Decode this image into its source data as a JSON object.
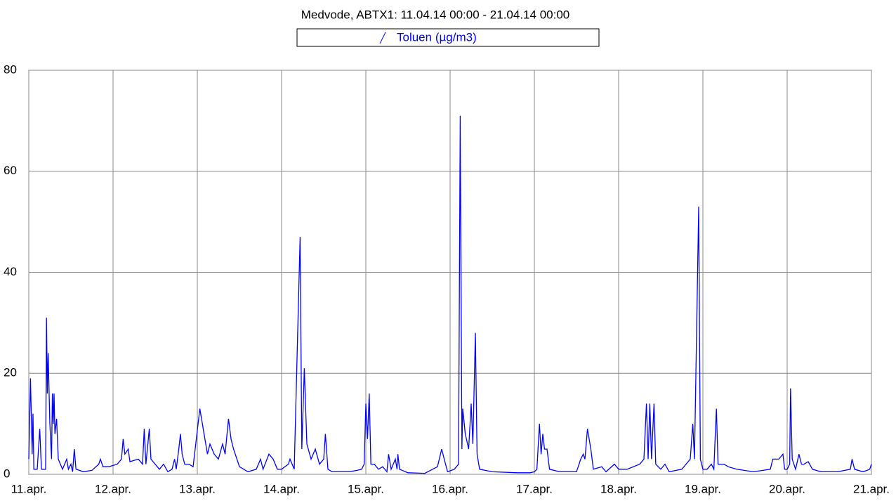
{
  "chart_data": {
    "type": "line",
    "title": "Medvode, ABTX1: 11.04.14 00:00 - 21.04.14 00:00",
    "x": [
      0,
      0.02,
      0.04,
      0.05,
      0.06,
      0.1,
      0.13,
      0.15,
      0.2,
      0.21,
      0.22,
      0.23,
      0.25,
      0.27,
      0.28,
      0.29,
      0.3,
      0.31,
      0.33,
      0.35,
      0.4,
      0.45,
      0.47,
      0.5,
      0.52,
      0.54,
      0.56,
      0.65,
      0.75,
      0.83,
      0.85,
      0.88,
      0.95,
      1.05,
      1.1,
      1.12,
      1.14,
      1.18,
      1.2,
      1.3,
      1.35,
      1.37,
      1.39,
      1.43,
      1.45,
      1.55,
      1.6,
      1.65,
      1.7,
      1.73,
      1.75,
      1.78,
      1.8,
      1.82,
      1.85,
      1.9,
      1.95,
      2.03,
      2.08,
      2.12,
      2.15,
      2.2,
      2.25,
      2.3,
      2.33,
      2.37,
      2.4,
      2.43,
      2.5,
      2.6,
      2.7,
      2.75,
      2.78,
      2.85,
      2.9,
      2.95,
      3.0,
      3.08,
      3.1,
      3.15,
      3.22,
      3.24,
      3.27,
      3.3,
      3.35,
      3.4,
      3.45,
      3.5,
      3.52,
      3.55,
      3.6,
      3.8,
      3.9,
      3.95,
      3.98,
      4.0,
      4.02,
      4.04,
      4.06,
      4.1,
      4.15,
      4.2,
      4.25,
      4.27,
      4.3,
      4.35,
      4.37,
      4.38,
      4.4,
      4.5,
      4.7,
      4.85,
      4.9,
      4.93,
      4.97,
      5.05,
      5.1,
      5.12,
      5.14,
      5.15,
      5.18,
      5.22,
      5.25,
      5.27,
      5.3,
      5.32,
      5.35,
      5.5,
      5.8,
      5.95,
      6.0,
      6.03,
      6.06,
      6.08,
      6.1,
      6.12,
      6.15,
      6.18,
      6.3,
      6.5,
      6.55,
      6.58,
      6.6,
      6.63,
      6.67,
      6.7,
      6.8,
      6.85,
      6.95,
      7.0,
      7.1,
      7.25,
      7.3,
      7.33,
      7.35,
      7.37,
      7.39,
      7.42,
      7.44,
      7.5,
      7.55,
      7.6,
      7.75,
      7.85,
      7.88,
      7.9,
      7.95,
      7.97,
      8.0,
      8.05,
      8.1,
      8.13,
      8.16,
      8.18,
      8.25,
      8.3,
      8.4,
      8.6,
      8.8,
      8.83,
      8.9,
      8.95,
      8.97,
      9.0,
      9.03,
      9.04,
      9.06,
      9.1,
      9.14,
      9.17,
      9.2,
      9.25,
      9.3,
      9.4,
      9.6,
      9.75,
      9.77,
      9.8,
      9.9,
      9.95,
      9.98,
      10.0
    ],
    "series": [
      {
        "name": "Toluen (µg/m3)",
        "color": "#0000ff",
        "values": [
          3,
          19,
          4,
          12,
          1,
          1,
          9,
          1,
          1,
          31,
          16,
          24,
          10,
          3,
          16,
          10,
          16,
          8,
          11,
          3,
          1,
          3,
          1,
          2,
          0.5,
          5,
          1,
          0.5,
          0.8,
          2,
          3,
          1.5,
          1.5,
          2,
          3,
          7,
          4,
          5,
          2.5,
          3,
          2,
          9,
          2,
          9,
          3,
          1,
          2,
          0.5,
          1,
          3,
          1,
          5,
          8,
          4,
          2,
          2,
          1.5,
          13,
          8,
          4,
          6,
          4,
          3,
          6,
          4,
          11,
          7,
          5,
          1.5,
          0.5,
          1,
          3,
          1,
          4,
          3,
          1,
          1,
          2,
          3,
          1,
          47,
          5,
          21,
          6,
          3,
          5,
          2,
          3,
          8,
          1,
          0.5,
          0.5,
          0.8,
          1,
          2,
          14,
          7,
          16,
          2,
          2,
          1,
          1.5,
          0.5,
          4,
          1,
          3,
          1,
          4,
          1,
          0.3,
          0.2,
          1.5,
          5,
          3,
          0.5,
          1,
          2,
          71,
          5,
          13,
          8,
          5,
          14,
          6,
          28,
          4,
          1,
          0.5,
          0.3,
          0.3,
          0.5,
          1,
          10,
          4,
          8,
          5,
          5,
          1,
          0.5,
          0.5,
          3,
          4,
          3,
          9,
          5,
          1,
          1.5,
          0.5,
          2,
          1,
          1,
          2,
          3,
          14,
          3,
          14,
          3,
          14,
          2,
          1,
          2,
          0.5,
          1,
          3,
          10,
          3,
          53,
          3,
          1,
          1,
          2,
          1,
          13,
          2,
          2,
          1.5,
          1,
          0.5,
          1,
          3,
          3,
          4,
          1,
          1,
          2,
          17,
          3,
          1,
          4,
          2,
          2,
          2.5,
          1,
          0.5,
          0.5,
          1,
          3,
          1,
          0.5,
          0.8,
          1,
          2
        ]
      }
    ],
    "xlim": [
      0,
      10
    ],
    "xticks": [
      {
        "value": 0,
        "label": "11.apr."
      },
      {
        "value": 1,
        "label": "12.apr."
      },
      {
        "value": 2,
        "label": "13.apr."
      },
      {
        "value": 3,
        "label": "14.apr."
      },
      {
        "value": 4,
        "label": "15.apr."
      },
      {
        "value": 5,
        "label": "16.apr."
      },
      {
        "value": 6,
        "label": "17.apr."
      },
      {
        "value": 7,
        "label": "18.apr."
      },
      {
        "value": 8,
        "label": "19.apr."
      },
      {
        "value": 9,
        "label": "20.apr."
      },
      {
        "value": 10,
        "label": "21.apr."
      }
    ],
    "ylim": [
      0,
      80
    ],
    "yticks": [
      0,
      20,
      40,
      60,
      80
    ],
    "grid": true
  }
}
